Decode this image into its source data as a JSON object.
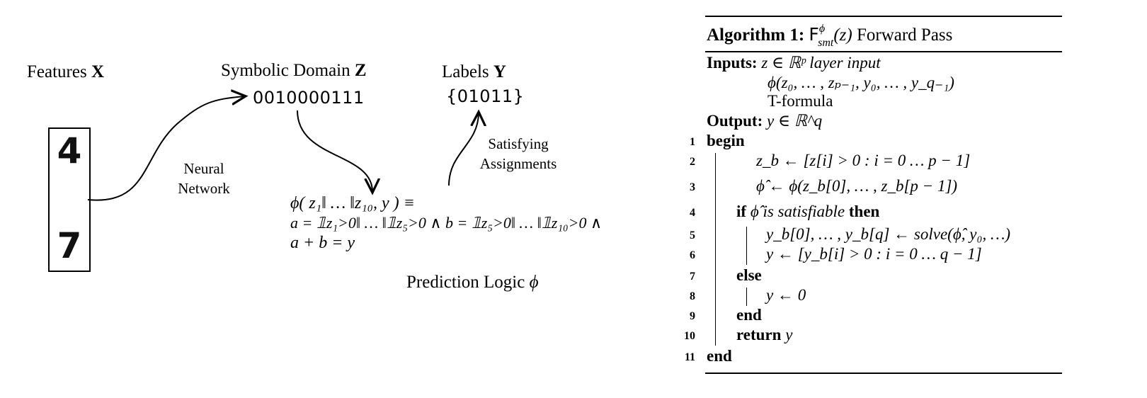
{
  "diagram": {
    "features_label": "Features",
    "features_symbol": "X",
    "domain_label": "Symbolic Domain",
    "domain_symbol": "Z",
    "labels_label": "Labels",
    "labels_symbol": "Y",
    "bits": "0010000111",
    "label_set": "{01011}",
    "neural_network": "Neural\nNetwork",
    "satisfying": "Satisfying\nAssignments",
    "prediction_label": "Prediction Logic",
    "prediction_symbol": "ϕ",
    "digit_top": "4",
    "digit_bottom": "7",
    "formula_line1": "ϕ(   z₁‖ … ‖z₁₀,    y   )  ≡",
    "formula_line2": "a = 𝟙z₁>0‖ … ‖𝟙z₅>0 ∧ b = 𝟙z₅>0‖ … ‖𝟙z₁₀>0 ∧",
    "formula_line3": "a + b = y"
  },
  "algorithm": {
    "title_bold": "Algorithm 1:",
    "title_rest": "Forward Pass",
    "title_math": "Fϕsmt(z)",
    "inputs_label": "Inputs:",
    "inputs_line1": "z ∈ ℝᵖ layer input",
    "inputs_line2": "ϕ(z₀, … , zₚ₋₁, y₀, … , y_q₋₁)",
    "inputs_line3": "T-formula",
    "output_label": "Output:",
    "output_value": "y ∈ ℝ^q",
    "lines": [
      {
        "n": "1",
        "text": "begin"
      },
      {
        "n": "2",
        "text": "z_b ← [z[i] > 0  :  i = 0 … p − 1]"
      },
      {
        "n": "3",
        "text": "ϕ̂ ← ϕ(z_b[0], … , z_b[p − 1])"
      },
      {
        "n": "4",
        "text_if": "if",
        "text_cond": "ϕ̂ is satisfiable",
        "text_then": "then"
      },
      {
        "n": "5",
        "text": "y_b[0], … , y_b[q] ← solve(ϕ̂, y₀, …)"
      },
      {
        "n": "6",
        "text": "y ← [y_b[i] > 0     :  i = 0 … q − 1]"
      },
      {
        "n": "7",
        "text": "else"
      },
      {
        "n": "8",
        "text": "y ← 0"
      },
      {
        "n": "9",
        "text": "end"
      },
      {
        "n": "10",
        "text_kw": "return",
        "text_val": "y"
      },
      {
        "n": "11",
        "text": "end"
      }
    ]
  }
}
